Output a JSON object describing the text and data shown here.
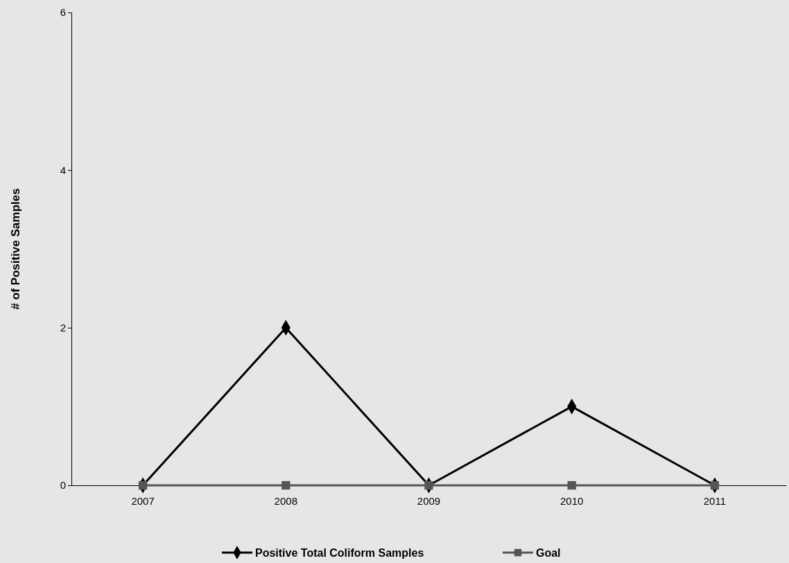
{
  "chart_data": {
    "type": "line",
    "ylabel": "# of Positive Samples",
    "categories": [
      "2007",
      "2008",
      "2009",
      "2010",
      "2011"
    ],
    "series": [
      {
        "name": "Positive Total Coliform Samples",
        "color": "#000000",
        "marker": "diamond",
        "values": [
          0,
          2,
          0,
          1,
          0
        ]
      },
      {
        "name": "Goal",
        "color": "#555555",
        "marker": "square",
        "values": [
          0,
          0,
          0,
          0,
          0
        ]
      }
    ],
    "ylim": [
      0,
      6
    ],
    "yticks": [
      0,
      2,
      4,
      6
    ],
    "legend": "bottom",
    "grid": false,
    "line_style": "solid"
  }
}
